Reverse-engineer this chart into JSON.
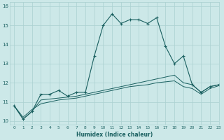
{
  "xlabel": "Humidex (Indice chaleur)",
  "background_color": "#cce8e8",
  "grid_color": "#aad0d0",
  "line_color": "#1a6060",
  "xlim": [
    -0.5,
    23
  ],
  "ylim": [
    9.8,
    16.2
  ],
  "yticks": [
    10,
    11,
    12,
    13,
    14,
    15,
    16
  ],
  "xticks": [
    0,
    1,
    2,
    3,
    4,
    5,
    6,
    7,
    8,
    9,
    10,
    11,
    12,
    13,
    14,
    15,
    16,
    17,
    18,
    19,
    20,
    21,
    22,
    23
  ],
  "series1_x": [
    0,
    1,
    2,
    3,
    4,
    5,
    6,
    7,
    8,
    9,
    10,
    11,
    12,
    13,
    14,
    15,
    16,
    17,
    18,
    19,
    20,
    21,
    22,
    23
  ],
  "series1_y": [
    10.8,
    10.1,
    10.5,
    11.4,
    11.4,
    11.6,
    11.3,
    11.5,
    11.5,
    13.4,
    15.0,
    15.6,
    15.1,
    15.3,
    15.3,
    15.1,
    15.4,
    13.9,
    13.0,
    13.4,
    11.9,
    11.5,
    11.8,
    11.9
  ],
  "series2_x": [
    0,
    1,
    2,
    3,
    4,
    5,
    6,
    7,
    8,
    9,
    10,
    11,
    12,
    13,
    14,
    15,
    16,
    17,
    18,
    19,
    20,
    21,
    22,
    23
  ],
  "series2_y": [
    10.8,
    10.1,
    10.5,
    11.1,
    11.15,
    11.2,
    11.25,
    11.3,
    11.4,
    11.5,
    11.6,
    11.7,
    11.8,
    11.9,
    12.0,
    12.1,
    12.2,
    12.3,
    12.4,
    12.0,
    11.9,
    11.5,
    11.8,
    11.9
  ],
  "series3_x": [
    0,
    1,
    2,
    3,
    4,
    5,
    6,
    7,
    8,
    9,
    10,
    11,
    12,
    13,
    14,
    15,
    16,
    17,
    18,
    19,
    20,
    21,
    22,
    23
  ],
  "series3_y": [
    10.8,
    10.2,
    10.6,
    10.9,
    11.0,
    11.1,
    11.15,
    11.2,
    11.3,
    11.4,
    11.5,
    11.6,
    11.7,
    11.8,
    11.85,
    11.9,
    12.0,
    12.05,
    12.1,
    11.8,
    11.7,
    11.4,
    11.7,
    11.85
  ]
}
